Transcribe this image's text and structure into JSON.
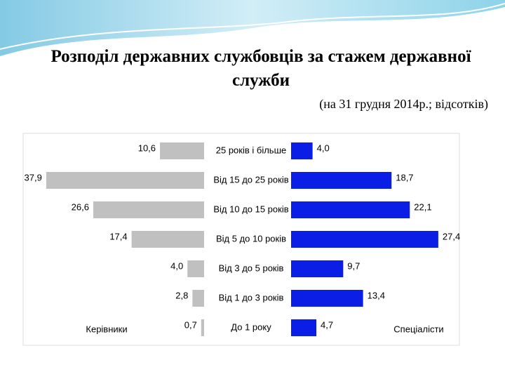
{
  "chart_data": {
    "type": "butterfly",
    "title": "Розподіл державних службовців за стажем державної служби",
    "subtitle": "(на 31 грудня 2014р.; відсотків)",
    "categories": [
      "25 років і більше",
      "Від 15 до 25 років",
      "Від 10 до 15 років",
      "Від 5 до 10 років",
      "Від 3 до 5 років",
      "Від 1 до 3 років",
      "До 1 року"
    ],
    "series": [
      {
        "name": "Керівники",
        "color": "#c0c0c0",
        "values": [
          10.6,
          37.9,
          26.6,
          17.4,
          4.0,
          2.8,
          0.7
        ],
        "value_labels": [
          "10,6",
          "37,9",
          "26,6",
          "17,4",
          "4,0",
          "2,8",
          "0,7"
        ]
      },
      {
        "name": "Спеціалісти",
        "color": "#0a1ee6",
        "values": [
          4.0,
          18.7,
          22.1,
          27.4,
          9.7,
          13.4,
          4.7
        ],
        "value_labels": [
          "4,0",
          "18,7",
          "22,1",
          "27,4",
          "9,7",
          "13,4",
          "4,7"
        ]
      }
    ]
  }
}
